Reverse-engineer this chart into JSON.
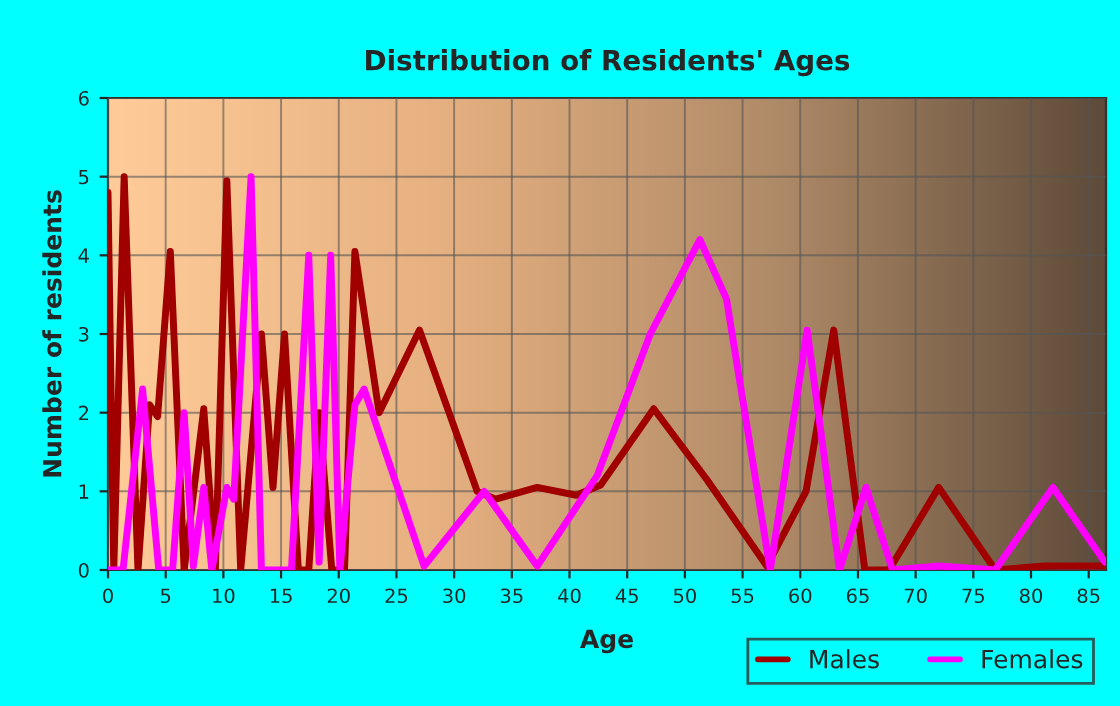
{
  "chart_data": {
    "type": "line",
    "title": "Distribution of Residents' Ages",
    "xlabel": "Age",
    "ylabel": "Number of residents",
    "xlim": [
      0,
      86.5
    ],
    "xticks": [
      0,
      5,
      10,
      15,
      20,
      25,
      30,
      35,
      40,
      45,
      50,
      55,
      60,
      65,
      70,
      75,
      80,
      85
    ],
    "ylim": [
      0,
      6
    ],
    "yticks": [
      0,
      1,
      2,
      3,
      4,
      5,
      6
    ],
    "grid": true,
    "legend": "bottom right",
    "marker": "none",
    "line_style": "solid",
    "series": [
      {
        "name": "Males",
        "color": "#a00000",
        "x": [
          0,
          0.5,
          1.4,
          2.6,
          3.6,
          4.3,
          5.4,
          6.6,
          8.3,
          9.3,
          10.3,
          11.5,
          13.3,
          14.3,
          15.3,
          16.5,
          17.4,
          18.3,
          19.4,
          20.5,
          21.4,
          23.5,
          27,
          32,
          33.6,
          37.2,
          40.6,
          42.7,
          47.3,
          51.9,
          57.1,
          60.5,
          62.9,
          65.6,
          67.7,
          72,
          76.9,
          81.2,
          86.4
        ],
        "values": [
          4.8,
          0,
          5,
          0,
          2.1,
          1.95,
          4.05,
          0,
          2.05,
          0,
          4.95,
          0,
          3,
          1.05,
          3,
          0,
          0,
          2,
          0,
          0,
          4.05,
          2,
          3.05,
          1,
          0.9,
          1.05,
          0.95,
          1.08,
          2.05,
          1.15,
          0.05,
          1,
          3.05,
          0,
          0,
          1.05,
          0,
          0.05,
          0.05
        ]
      },
      {
        "name": "Females",
        "color": "#ff00ff",
        "x": [
          0,
          1.3,
          3,
          4.4,
          5.6,
          6.6,
          7.4,
          8.3,
          9,
          10.3,
          10.9,
          12.4,
          13.3,
          14.2,
          15.9,
          17.4,
          18.3,
          19.3,
          20.1,
          21.4,
          22.2,
          27.4,
          32.6,
          37.2,
          42.4,
          47,
          51.3,
          53.6,
          57.4,
          60.6,
          63.4,
          65.7,
          68,
          72,
          76.9,
          81.9,
          86.4
        ],
        "values": [
          0,
          0,
          2.3,
          0,
          0,
          2,
          0.05,
          1.05,
          0,
          1.05,
          0.9,
          5,
          0,
          0,
          0,
          4,
          0.1,
          4,
          0,
          2.1,
          2.3,
          0.05,
          1,
          0.05,
          1.2,
          3,
          4.2,
          3.45,
          0,
          3.05,
          0,
          1.05,
          0,
          0.05,
          0,
          1.05,
          0.1
        ]
      }
    ]
  }
}
